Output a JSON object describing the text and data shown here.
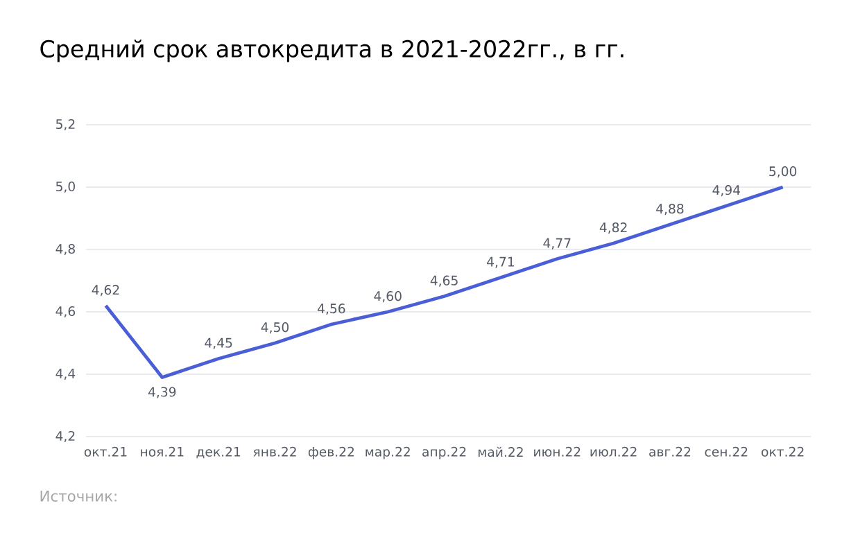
{
  "chart_data": {
    "type": "line",
    "title": "Средний срок автокредита в 2021-2022гг., в гг.",
    "categories": [
      "окт.21",
      "ноя.21",
      "дек.21",
      "янв.22",
      "фев.22",
      "мар.22",
      "апр.22",
      "май.22",
      "июн.22",
      "июл.22",
      "авг.22",
      "сен.22",
      "окт.22"
    ],
    "series": [
      {
        "color": "#4a5fd6",
        "values": [
          4.62,
          4.39,
          4.45,
          4.5,
          4.56,
          4.6,
          4.65,
          4.71,
          4.77,
          4.82,
          4.88,
          4.94,
          5.0
        ],
        "value_labels": [
          "4,62",
          "4,39",
          "4,45",
          "4,50",
          "4,56",
          "4,60",
          "4,65",
          "4,71",
          "4,77",
          "4,82",
          "4,88",
          "4,94",
          "5,00"
        ]
      }
    ],
    "ylim": [
      4.2,
      5.2
    ],
    "yticks": [
      {
        "value": 4.2,
        "label": "4,2"
      },
      {
        "value": 4.4,
        "label": "4,4"
      },
      {
        "value": 4.6,
        "label": "4,6"
      },
      {
        "value": 4.8,
        "label": "4,8"
      },
      {
        "value": 5.0,
        "label": "5,0"
      },
      {
        "value": 5.2,
        "label": "5,2"
      }
    ],
    "grid": "y",
    "annotations": [
      "Источник:"
    ]
  }
}
